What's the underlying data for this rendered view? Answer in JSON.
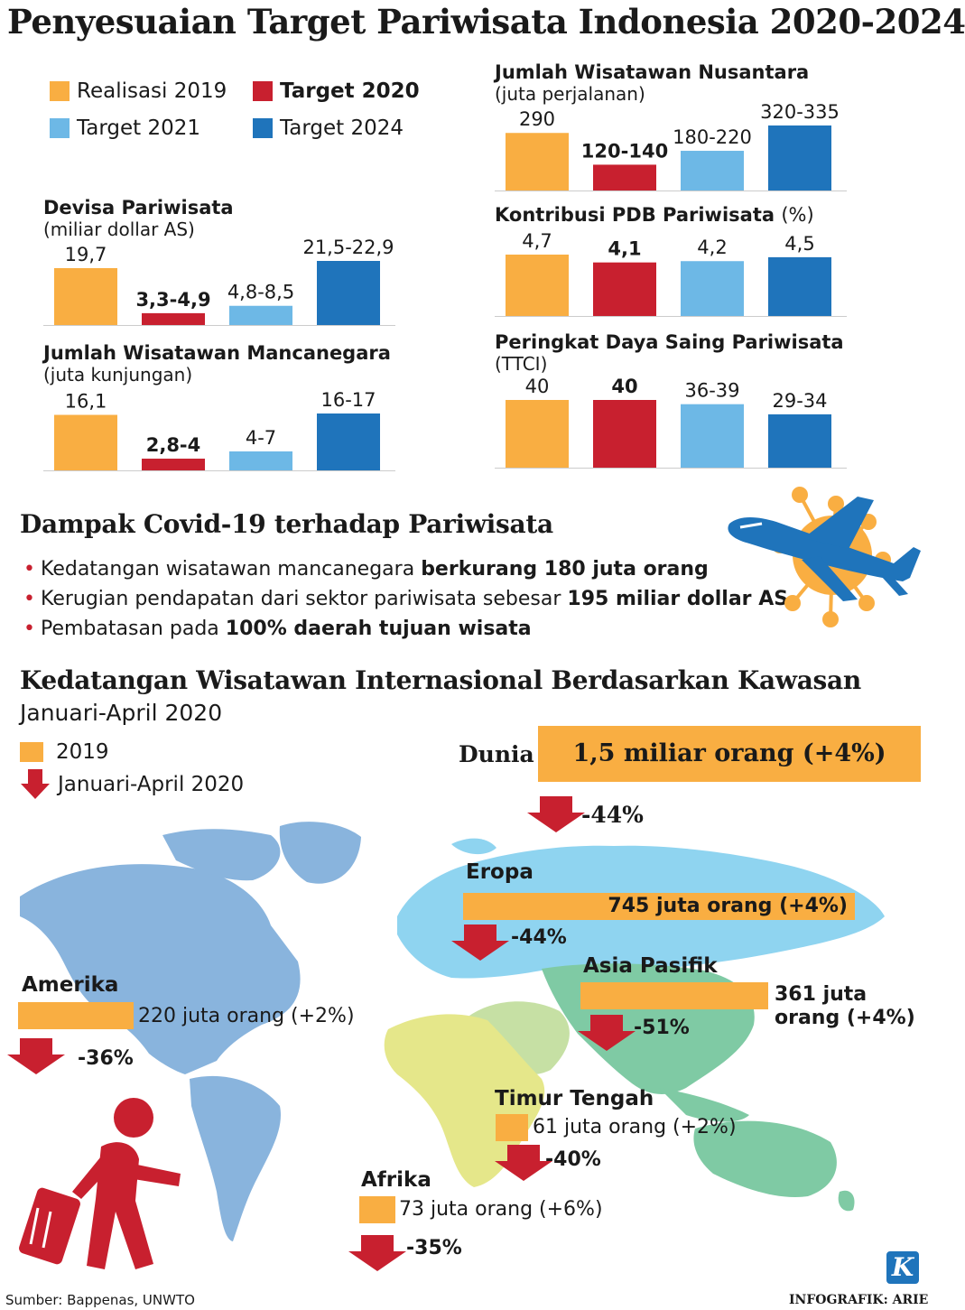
{
  "title": "Penyesuaian Target Pariwisata Indonesia 2020-2024",
  "colors": {
    "realisasi_2019": "#f9ae42",
    "target_2020": "#c8202f",
    "target_2021": "#6db8e6",
    "target_2024": "#1f74bb",
    "arrow": "#c8202f"
  },
  "legend": [
    "Realisasi 2019",
    "Target 2020",
    "Target 2021",
    "Target 2024"
  ],
  "chart_data": [
    {
      "type": "bar",
      "title": "Devisa Pariwisata",
      "unit": "(miliar dollar AS)",
      "categories": [
        "Realisasi 2019",
        "Target 2020",
        "Target 2021",
        "Target 2024"
      ],
      "values": [
        19.7,
        4.1,
        6.65,
        22.2
      ],
      "labels": [
        "19,7",
        "3,3-4,9",
        "4,8-8,5",
        "21,5-22,9"
      ]
    },
    {
      "type": "bar",
      "title": "Jumlah Wisatawan Mancanegara",
      "unit": "(juta kunjungan)",
      "categories": [
        "Realisasi 2019",
        "Target 2020",
        "Target 2021",
        "Target 2024"
      ],
      "values": [
        16.1,
        3.4,
        5.5,
        16.5
      ],
      "labels": [
        "16,1",
        "2,8-4",
        "4-7",
        "16-17"
      ]
    },
    {
      "type": "bar",
      "title": "Jumlah Wisatawan Nusantara",
      "unit": "(juta perjalanan)",
      "categories": [
        "Realisasi 2019",
        "Target 2020",
        "Target 2021",
        "Target 2024"
      ],
      "values": [
        290,
        130,
        200,
        327.5
      ],
      "labels": [
        "290",
        "120-140",
        "180-220",
        "320-335"
      ]
    },
    {
      "type": "bar",
      "title": "Kontribusi PDB Pariwisata",
      "unit": "(%)",
      "categories": [
        "Realisasi 2019",
        "Target 2020",
        "Target 2021",
        "Target 2024"
      ],
      "values": [
        4.7,
        4.1,
        4.2,
        4.5
      ],
      "labels": [
        "4,7",
        "4,1",
        "4,2",
        "4,5"
      ]
    },
    {
      "type": "bar",
      "title": "Peringkat Daya Saing Pariwisata",
      "unit": "(TTCI)",
      "categories": [
        "Realisasi 2019",
        "Target 2020",
        "Target 2021",
        "Target 2024"
      ],
      "values": [
        40,
        40,
        37.5,
        31.5
      ],
      "labels": [
        "40",
        "40",
        "36-39",
        "29-34"
      ]
    },
    {
      "type": "bar",
      "title": "Kedatangan Wisatawan Internasional Berdasarkan Kawasan",
      "subtitle": "Januari-April 2020",
      "categories": [
        "Dunia",
        "Eropa",
        "Asia Pasifik",
        "Amerika",
        "Timur Tengah",
        "Afrika"
      ],
      "series": [
        {
          "name": "2019",
          "values": [
            1500,
            745,
            361,
            220,
            61,
            73
          ],
          "labels": [
            "1,5 miliar orang (+4%)",
            "745 juta orang (+4%)",
            "361 juta orang (+4%)",
            "220 juta orang (+2%)",
            "61 juta orang (+2%)",
            "73 juta orang (+6%)"
          ]
        },
        {
          "name": "Januari-April 2020",
          "values": [
            -44,
            -44,
            -51,
            -36,
            -40,
            -35
          ],
          "labels": [
            "-44%",
            "-44%",
            "-51%",
            "-36%",
            "-40%",
            "-35%"
          ]
        }
      ]
    }
  ],
  "covid": {
    "title": "Dampak Covid-19 terhadap Pariwisata",
    "bullets": [
      {
        "text": "Kedatangan wisatawan mancanegara ",
        "bold": "berkurang 180 juta orang"
      },
      {
        "text": "Kerugian pendapatan dari sektor pariwisata sebesar ",
        "bold": "195 miliar dollar AS"
      },
      {
        "text": "Pembatasan pada ",
        "bold": "100% daerah tujuan wisata"
      }
    ]
  },
  "source": "Sumber: Bappenas, UNWTO",
  "credit": "INFOGRAFIK: ARIE",
  "logo_letter": "K"
}
